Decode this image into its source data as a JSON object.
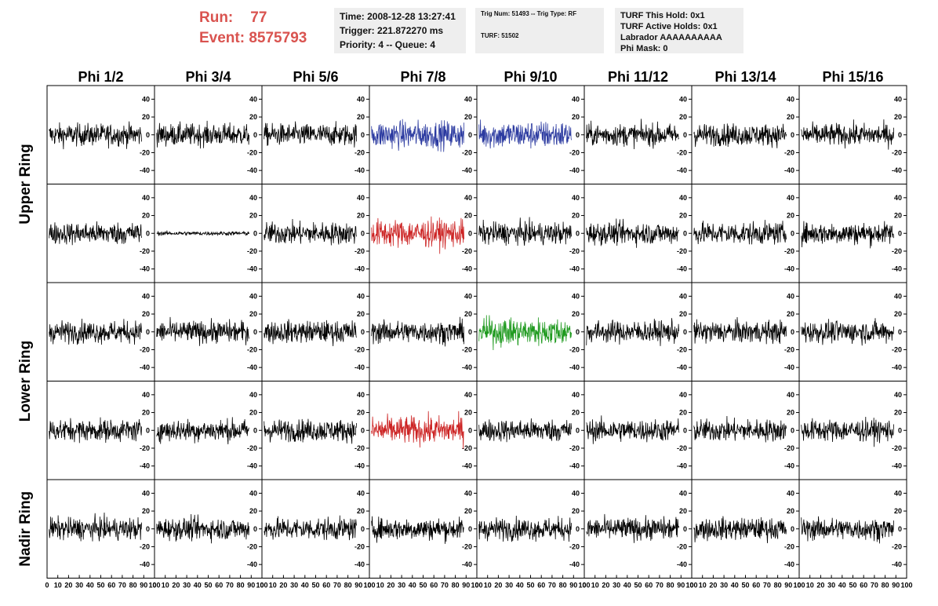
{
  "header": {
    "run_label": "Run:",
    "run_value": "77",
    "event_label": "Event:",
    "event_value": "8575793",
    "time": "Time: 2008-12-28 13:27:41",
    "trigger": "Trigger: 221.872270 ms",
    "priority": "Priority: 4 -- Queue: 4",
    "trig_num": "Trig Num: 51493 -- Trig Type: RF",
    "turf": "TURF: 51502",
    "turf_this_hold": "TURF This Hold: 0x1",
    "turf_active_holds": "TURF Active Holds: 0x1",
    "labrador": "Labrador AAAAAAAAAA",
    "phi_mask": "Phi Mask: 0"
  },
  "chart_data": {
    "type": "line",
    "columns": [
      "Phi 1/2",
      "Phi 3/4",
      "Phi 5/6",
      "Phi 7/8",
      "Phi 9/10",
      "Phi 11/12",
      "Phi 13/14",
      "Phi 15/16"
    ],
    "ring_labels": [
      {
        "label": "Upper Ring",
        "rows": [
          0,
          1
        ]
      },
      {
        "label": "Lower Ring",
        "rows": [
          2,
          3
        ]
      },
      {
        "label": "Nadir Ring",
        "rows": [
          4
        ]
      }
    ],
    "rows": 5,
    "xlim": [
      0,
      100
    ],
    "ylim": [
      -50,
      50
    ],
    "x_ticks": [
      0,
      10,
      20,
      30,
      40,
      50,
      60,
      70,
      80,
      90,
      100
    ],
    "y_ticks": [
      -40,
      -20,
      0,
      20,
      40
    ],
    "highlighted_panels": [
      {
        "row": 0,
        "col": 3,
        "color": "#2b3aa0"
      },
      {
        "row": 0,
        "col": 4,
        "color": "#2b3aa0"
      },
      {
        "row": 1,
        "col": 3,
        "color": "#cc2222"
      },
      {
        "row": 2,
        "col": 4,
        "color": "#1f9a1f"
      },
      {
        "row": 3,
        "col": 3,
        "color": "#cc2222"
      }
    ],
    "default_trace_color": "#000000",
    "quiet_panels": [
      {
        "row": 1,
        "col": 1,
        "amplitude": 3
      }
    ],
    "typical_amplitude": 16
  }
}
